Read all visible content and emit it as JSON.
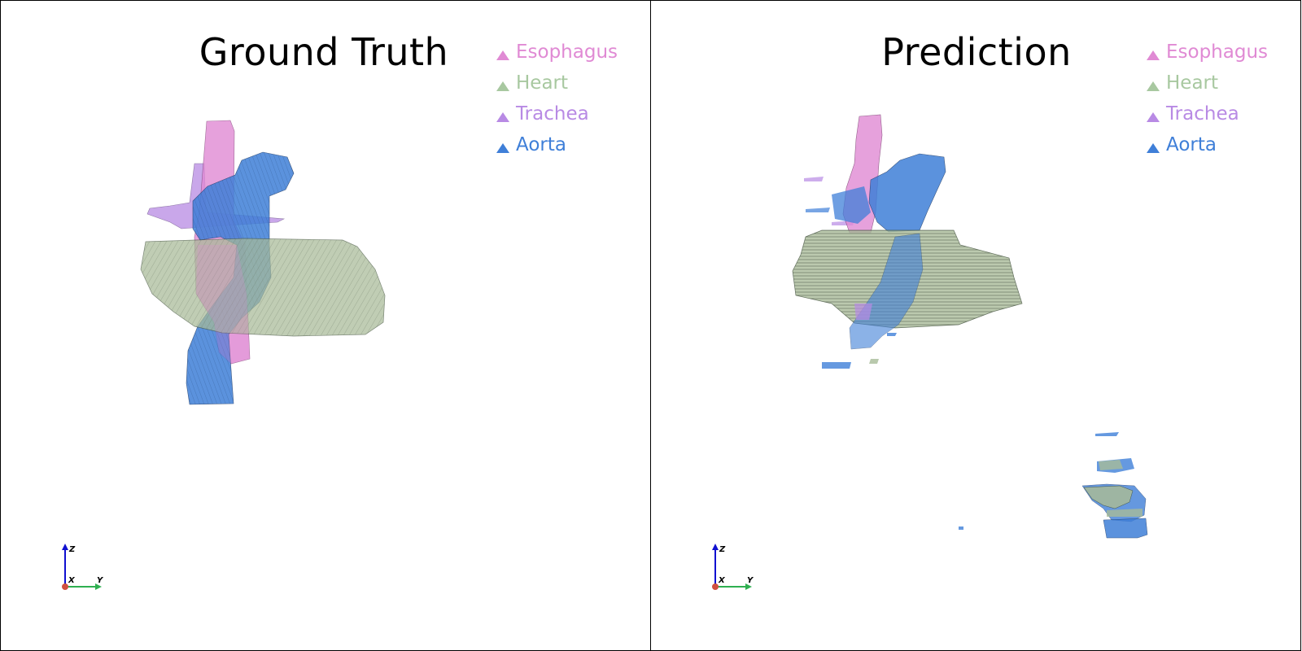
{
  "panels": [
    {
      "id": "left",
      "title": "Ground Truth",
      "legend": [
        {
          "label": "Esophagus",
          "color": "#e08ad4"
        },
        {
          "label": "Heart",
          "color": "#a8c8a0"
        },
        {
          "label": "Trachea",
          "color": "#b88ae4"
        },
        {
          "label": "Aorta",
          "color": "#3f7fd8"
        }
      ],
      "axes": {
        "z": "Z",
        "x": "X",
        "y": "Y"
      }
    },
    {
      "id": "right",
      "title": "Prediction",
      "legend": [
        {
          "label": "Esophagus",
          "color": "#e08ad4"
        },
        {
          "label": "Heart",
          "color": "#a8c8a0"
        },
        {
          "label": "Trachea",
          "color": "#b88ae4"
        },
        {
          "label": "Aorta",
          "color": "#3f7fd8"
        }
      ],
      "axes": {
        "z": "Z",
        "x": "X",
        "y": "Y"
      }
    }
  ]
}
